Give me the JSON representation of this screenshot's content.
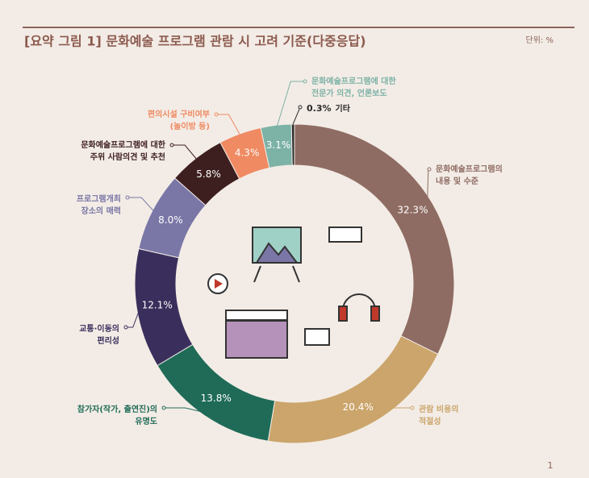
{
  "chart_data": {
    "type": "donut",
    "title": "[요약 그림 1] 문화예술 프로그램 관람 시 고려 기준(다중응답)",
    "unit": "단위: %",
    "page_number": "1",
    "categories": [
      [
        "문화예술프로그램의",
        "내용 및 수준"
      ],
      [
        "관람 비용의",
        "적절성"
      ],
      [
        "참가자(작가, 출연진)의",
        "유명도"
      ],
      [
        "교통·이동의",
        "편리성"
      ],
      [
        "프로그램개최",
        "장소의 매력"
      ],
      [
        "문화예술프로그램에 대한",
        "주위 사람의견 및 추천"
      ],
      [
        "편의시설 구비여부",
        "(놀이방 등)"
      ],
      [
        "문화예술프로그램에 대한",
        "전문가 의견, 언론보도"
      ],
      [
        "기타"
      ]
    ],
    "values": [
      32.3,
      20.4,
      13.8,
      12.1,
      8.0,
      5.8,
      4.3,
      3.1,
      0.3
    ],
    "value_labels": [
      "32.3%",
      "20.4%",
      "13.8%",
      "12.1%",
      "8.0%",
      "5.8%",
      "4.3%",
      "3.1%",
      "0.3%"
    ],
    "colors": [
      "#8f6c63",
      "#cba56b",
      "#1f6b58",
      "#3a2f5c",
      "#7a76a6",
      "#3e1f20",
      "#ef8a62",
      "#7db2a6",
      "#2a2a2a"
    ]
  }
}
